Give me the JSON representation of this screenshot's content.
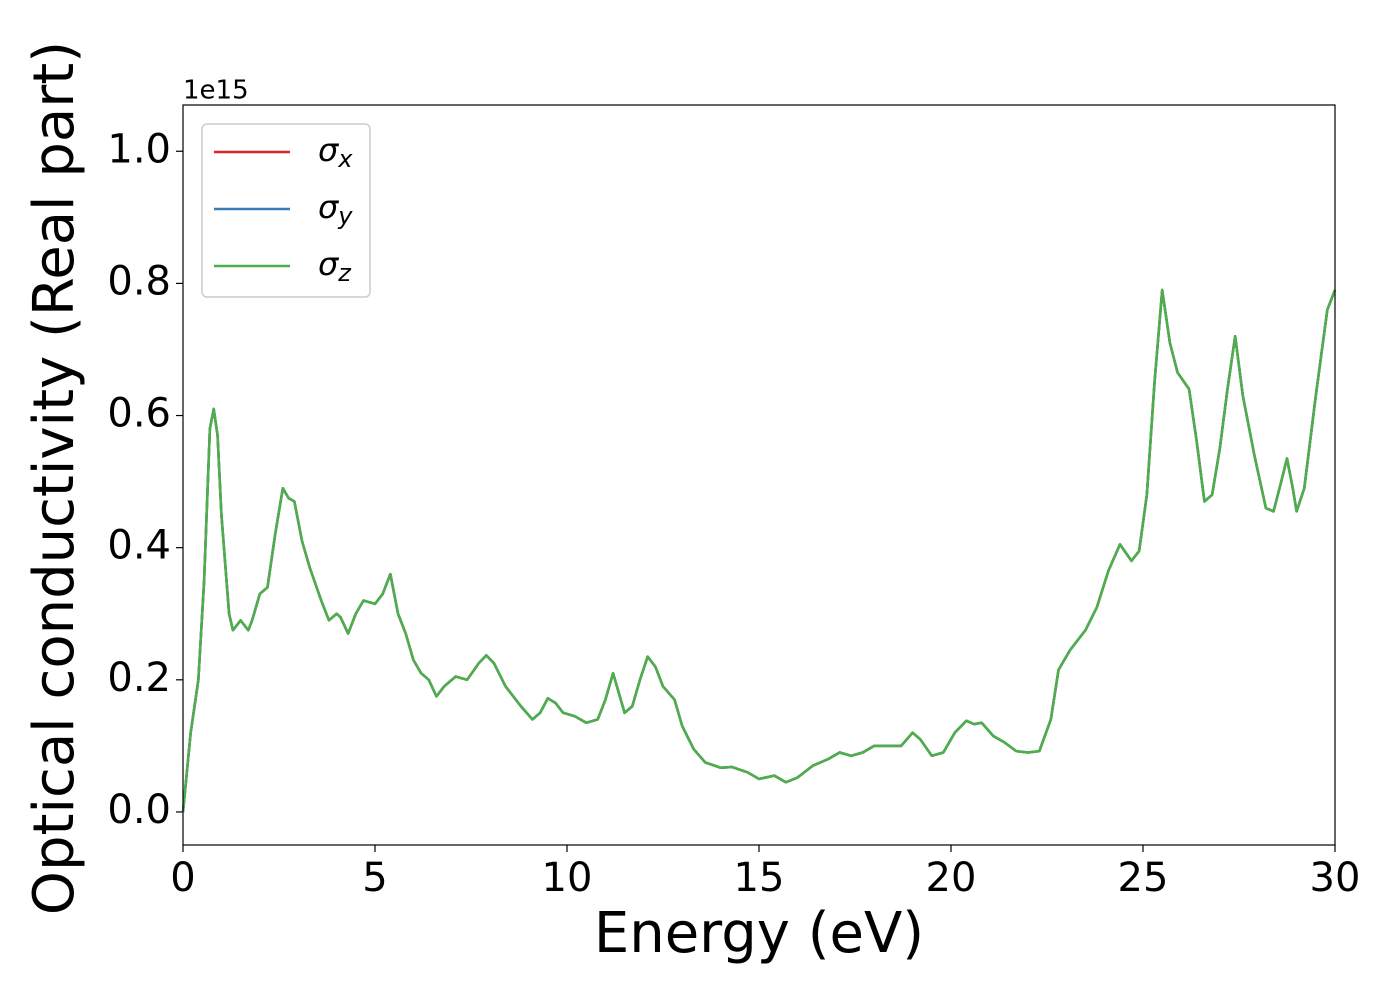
{
  "chart_data": {
    "type": "line",
    "xlabel": "Energy (eV)",
    "ylabel": "Optical conductivity (Real part)",
    "y_offset_label": "1e15",
    "x": [
      0,
      0.2,
      0.4,
      0.55,
      0.7,
      0.8,
      0.9,
      1.0,
      1.2,
      1.3,
      1.5,
      1.7,
      1.8,
      2.0,
      2.2,
      2.4,
      2.6,
      2.75,
      2.9,
      3.1,
      3.3,
      3.6,
      3.8,
      4.0,
      4.1,
      4.3,
      4.5,
      4.7,
      5.0,
      5.2,
      5.4,
      5.6,
      5.8,
      6.0,
      6.2,
      6.4,
      6.6,
      6.8,
      7.1,
      7.4,
      7.7,
      7.9,
      8.1,
      8.4,
      8.8,
      9.1,
      9.3,
      9.5,
      9.7,
      9.9,
      10.2,
      10.5,
      10.8,
      11.0,
      11.2,
      11.3,
      11.5,
      11.7,
      11.9,
      12.1,
      12.3,
      12.5,
      12.8,
      13.0,
      13.3,
      13.6,
      14.0,
      14.3,
      14.7,
      15.0,
      15.4,
      15.7,
      16.0,
      16.4,
      16.8,
      17.1,
      17.4,
      17.7,
      18.0,
      18.4,
      18.7,
      19.0,
      19.2,
      19.5,
      19.8,
      20.1,
      20.4,
      20.6,
      20.8,
      21.1,
      21.4,
      21.7,
      22.0,
      22.3,
      22.6,
      22.8,
      23.1,
      23.5,
      23.8,
      24.1,
      24.4,
      24.7,
      24.9,
      25.1,
      25.3,
      25.5,
      25.7,
      25.9,
      26.2,
      26.4,
      26.6,
      26.8,
      27.0,
      27.2,
      27.4,
      27.6,
      27.9,
      28.2,
      28.4,
      28.6,
      28.75,
      28.9,
      29.0,
      29.2,
      29.5,
      29.8,
      30.0
    ],
    "series": [
      {
        "name": "σx",
        "color": "#d62728",
        "values": [
          0.0,
          0.12,
          0.2,
          0.35,
          0.58,
          0.61,
          0.57,
          0.45,
          0.3,
          0.275,
          0.29,
          0.275,
          0.29,
          0.33,
          0.34,
          0.42,
          0.49,
          0.475,
          0.47,
          0.41,
          0.37,
          0.32,
          0.29,
          0.3,
          0.295,
          0.27,
          0.3,
          0.32,
          0.315,
          0.33,
          0.36,
          0.3,
          0.27,
          0.23,
          0.21,
          0.2,
          0.175,
          0.19,
          0.205,
          0.2,
          0.225,
          0.237,
          0.225,
          0.19,
          0.16,
          0.14,
          0.15,
          0.172,
          0.165,
          0.15,
          0.145,
          0.135,
          0.14,
          0.17,
          0.21,
          0.19,
          0.15,
          0.16,
          0.2,
          0.235,
          0.22,
          0.19,
          0.17,
          0.13,
          0.095,
          0.075,
          0.067,
          0.068,
          0.06,
          0.05,
          0.055,
          0.045,
          0.052,
          0.07,
          0.08,
          0.09,
          0.085,
          0.09,
          0.1,
          0.1,
          0.1,
          0.12,
          0.11,
          0.085,
          0.09,
          0.12,
          0.138,
          0.133,
          0.135,
          0.115,
          0.105,
          0.092,
          0.09,
          0.092,
          0.14,
          0.215,
          0.245,
          0.275,
          0.31,
          0.365,
          0.405,
          0.38,
          0.395,
          0.48,
          0.65,
          0.79,
          0.71,
          0.665,
          0.64,
          0.56,
          0.47,
          0.48,
          0.55,
          0.64,
          0.72,
          0.63,
          0.54,
          0.46,
          0.455,
          0.5,
          0.535,
          0.49,
          0.455,
          0.49,
          0.63,
          0.76,
          0.79
        ]
      },
      {
        "name": "σy",
        "color": "#377eb8",
        "values": [
          0.0,
          0.12,
          0.2,
          0.35,
          0.58,
          0.61,
          0.57,
          0.45,
          0.3,
          0.275,
          0.29,
          0.275,
          0.29,
          0.33,
          0.34,
          0.42,
          0.49,
          0.475,
          0.47,
          0.41,
          0.37,
          0.32,
          0.29,
          0.3,
          0.295,
          0.27,
          0.3,
          0.32,
          0.315,
          0.33,
          0.36,
          0.3,
          0.27,
          0.23,
          0.21,
          0.2,
          0.175,
          0.19,
          0.205,
          0.2,
          0.225,
          0.237,
          0.225,
          0.19,
          0.16,
          0.14,
          0.15,
          0.172,
          0.165,
          0.15,
          0.145,
          0.135,
          0.14,
          0.17,
          0.21,
          0.19,
          0.15,
          0.16,
          0.2,
          0.235,
          0.22,
          0.19,
          0.17,
          0.13,
          0.095,
          0.075,
          0.067,
          0.068,
          0.06,
          0.05,
          0.055,
          0.045,
          0.052,
          0.07,
          0.08,
          0.09,
          0.085,
          0.09,
          0.1,
          0.1,
          0.1,
          0.12,
          0.11,
          0.085,
          0.09,
          0.12,
          0.138,
          0.133,
          0.135,
          0.115,
          0.105,
          0.092,
          0.09,
          0.092,
          0.14,
          0.215,
          0.245,
          0.275,
          0.31,
          0.365,
          0.405,
          0.38,
          0.395,
          0.48,
          0.65,
          0.79,
          0.71,
          0.665,
          0.64,
          0.56,
          0.47,
          0.48,
          0.55,
          0.64,
          0.72,
          0.63,
          0.54,
          0.46,
          0.455,
          0.5,
          0.535,
          0.49,
          0.455,
          0.49,
          0.63,
          0.76,
          0.79
        ]
      },
      {
        "name": "σz",
        "color": "#4daf4a",
        "values": [
          0.0,
          0.12,
          0.2,
          0.35,
          0.58,
          0.61,
          0.57,
          0.45,
          0.3,
          0.275,
          0.29,
          0.275,
          0.29,
          0.33,
          0.34,
          0.42,
          0.49,
          0.475,
          0.47,
          0.41,
          0.37,
          0.32,
          0.29,
          0.3,
          0.295,
          0.27,
          0.3,
          0.32,
          0.315,
          0.33,
          0.36,
          0.3,
          0.27,
          0.23,
          0.21,
          0.2,
          0.175,
          0.19,
          0.205,
          0.2,
          0.225,
          0.237,
          0.225,
          0.19,
          0.16,
          0.14,
          0.15,
          0.172,
          0.165,
          0.15,
          0.145,
          0.135,
          0.14,
          0.17,
          0.21,
          0.19,
          0.15,
          0.16,
          0.2,
          0.235,
          0.22,
          0.19,
          0.17,
          0.13,
          0.095,
          0.075,
          0.067,
          0.068,
          0.06,
          0.05,
          0.055,
          0.045,
          0.052,
          0.07,
          0.08,
          0.09,
          0.085,
          0.09,
          0.1,
          0.1,
          0.1,
          0.12,
          0.11,
          0.085,
          0.09,
          0.12,
          0.138,
          0.133,
          0.135,
          0.115,
          0.105,
          0.092,
          0.09,
          0.092,
          0.14,
          0.215,
          0.245,
          0.275,
          0.31,
          0.365,
          0.405,
          0.38,
          0.395,
          0.48,
          0.65,
          0.79,
          0.71,
          0.665,
          0.64,
          0.56,
          0.47,
          0.48,
          0.55,
          0.64,
          0.72,
          0.63,
          0.54,
          0.46,
          0.455,
          0.5,
          0.535,
          0.49,
          0.455,
          0.49,
          0.63,
          0.76,
          0.79
        ]
      }
    ],
    "xlim": [
      0,
      30
    ],
    "xticks": [
      0,
      5,
      10,
      15,
      20,
      25,
      30
    ],
    "ylim": [
      -0.05,
      1.07
    ],
    "yticks": [
      {
        "value": 0,
        "label": "0.0"
      },
      {
        "value": 0.2,
        "label": "0.2"
      },
      {
        "value": 0.4,
        "label": "0.4"
      },
      {
        "value": 0.6,
        "label": "0.6"
      },
      {
        "value": 0.8,
        "label": "0.8"
      },
      {
        "value": 1,
        "label": "1.0"
      }
    ],
    "grid": false,
    "legend": "upper left"
  }
}
